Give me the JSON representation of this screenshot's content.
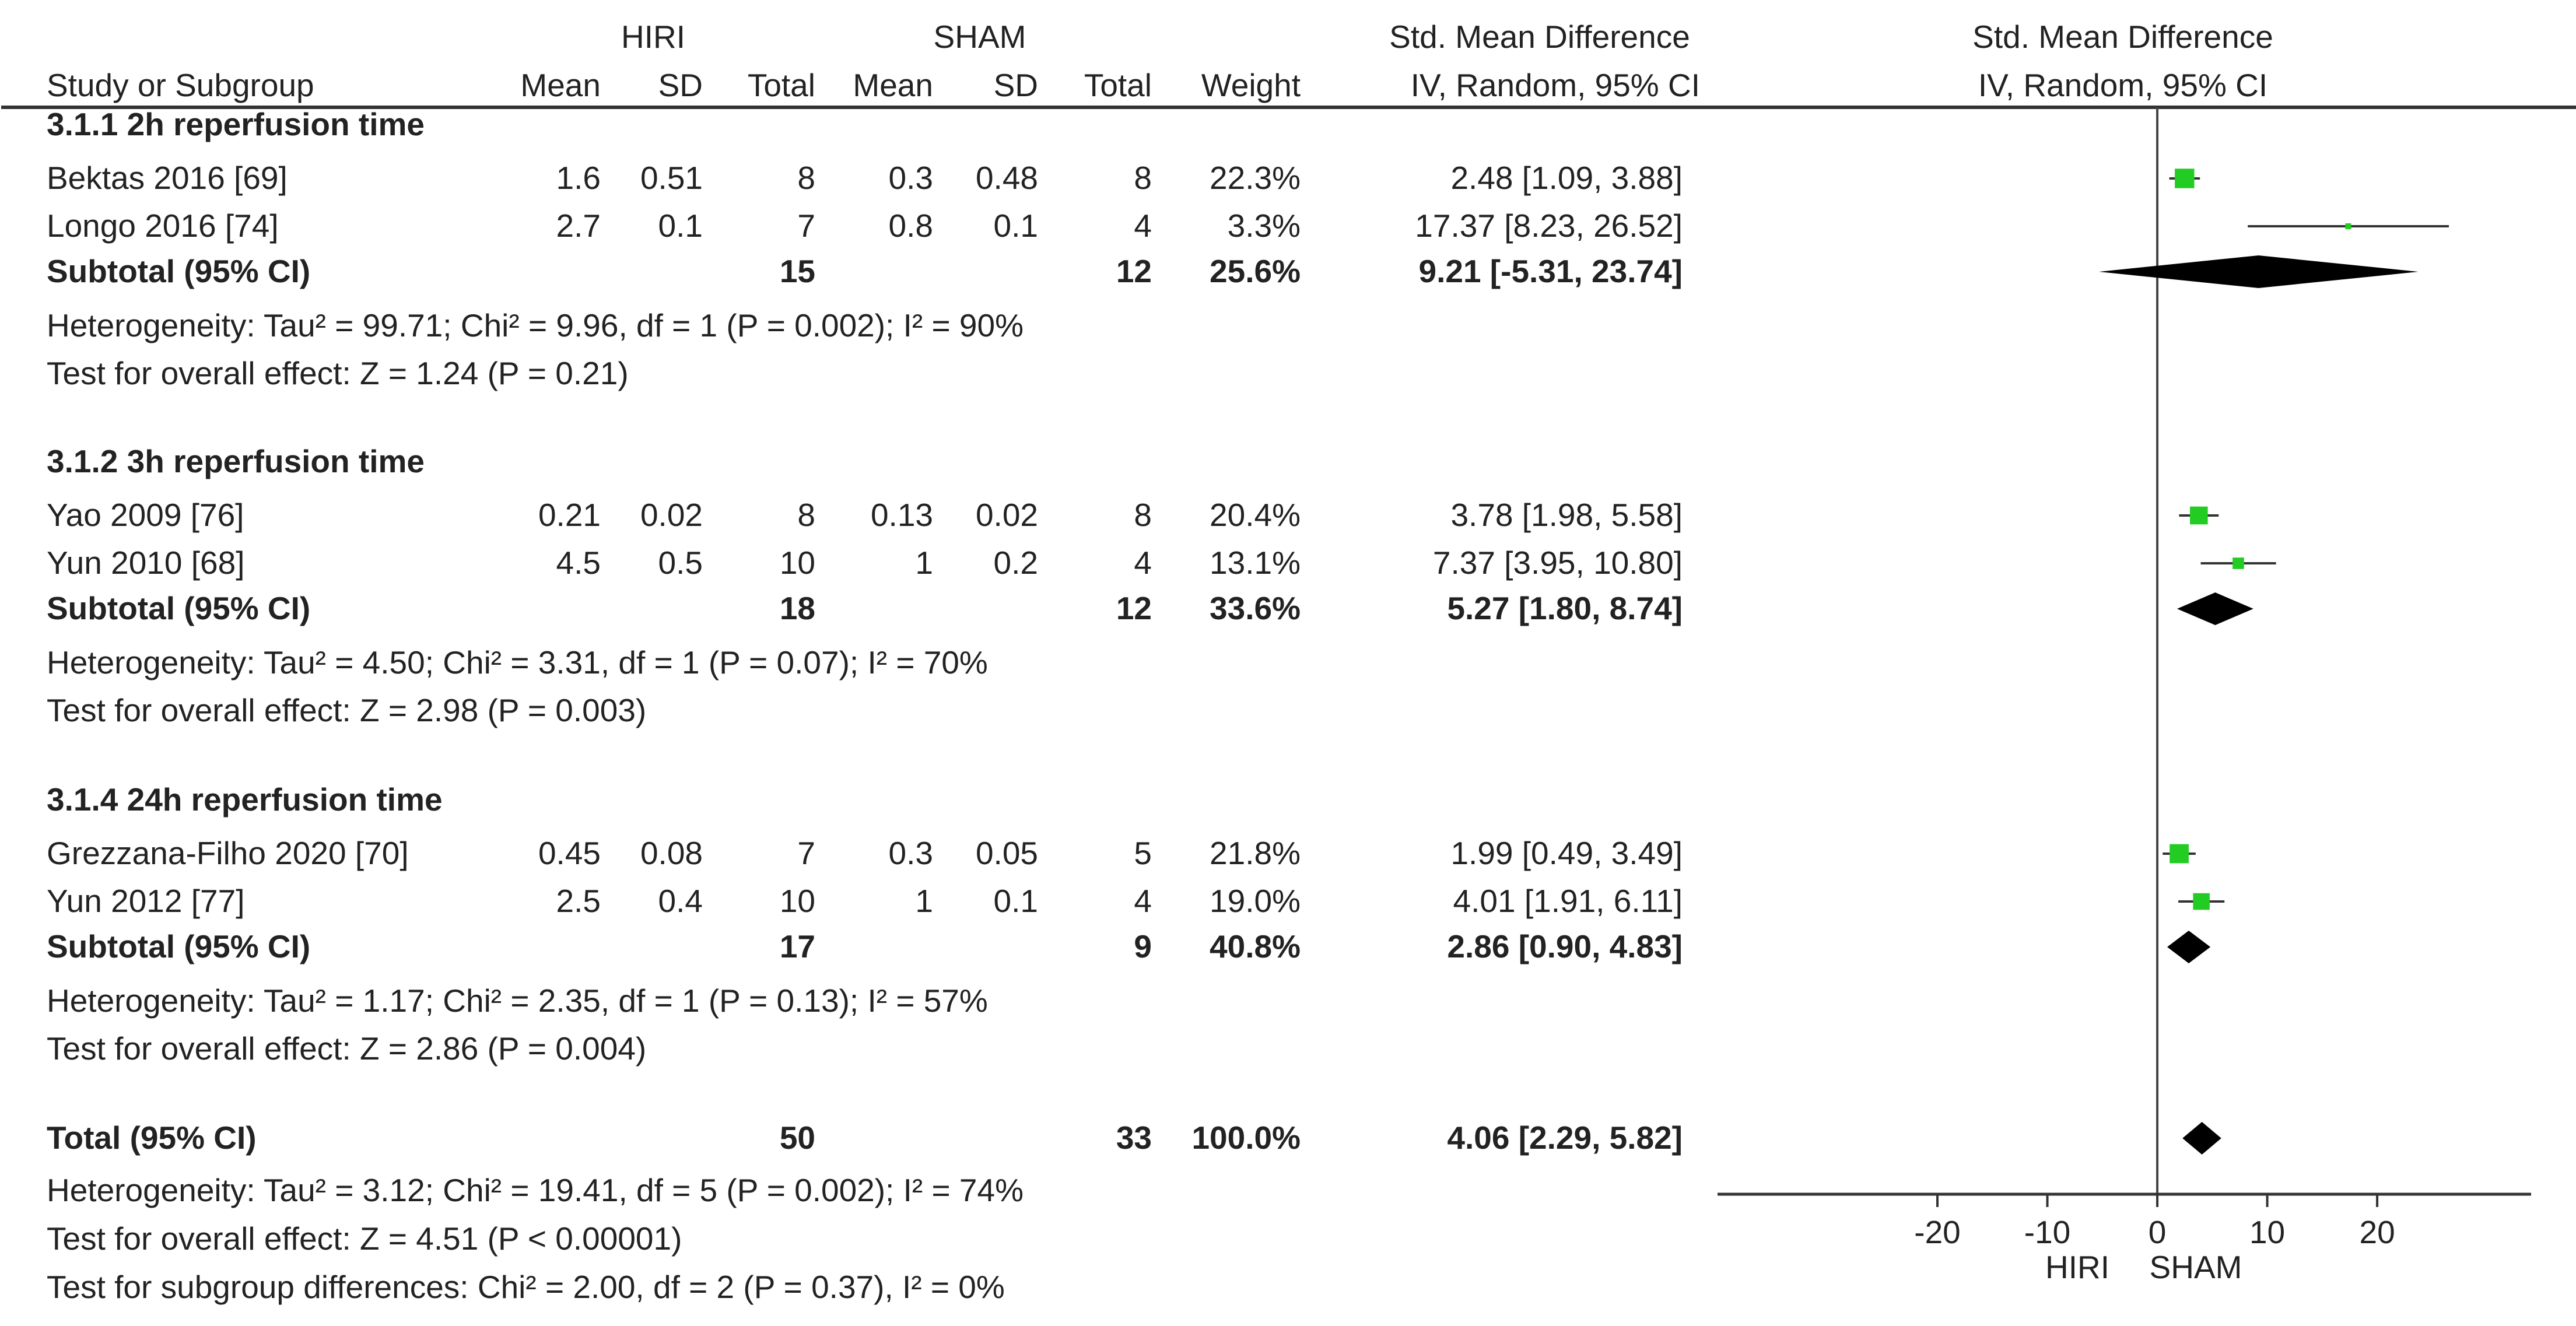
{
  "headers": {
    "group1": "HIRI",
    "group2": "SHAM",
    "effect_title": "Std. Mean Difference",
    "effect_method": "IV, Random, 95% CI",
    "plot_title": "Std. Mean Difference",
    "plot_method": "IV, Random, 95% CI",
    "study": "Study or Subgroup",
    "mean1": "Mean",
    "sd1": "SD",
    "total1": "Total",
    "mean2": "Mean",
    "sd2": "SD",
    "total2": "Total",
    "weight": "Weight"
  },
  "axis": {
    "left_label": "HIRI",
    "right_label": "SHAM"
  },
  "colors": {
    "study_marker": "#22cc22",
    "pooled_marker": "#000000",
    "text": "#222222",
    "lines": "#333333"
  },
  "chart_data": {
    "type": "forest",
    "xlim": [
      -40,
      34
    ],
    "ticks": [
      {
        "value": -20,
        "label": "-20"
      },
      {
        "value": -10,
        "label": "-10"
      },
      {
        "value": 0,
        "label": "0"
      },
      {
        "value": 10,
        "label": "10"
      },
      {
        "value": 20,
        "label": "20"
      }
    ],
    "groups": [
      {
        "heading": "3.1.1 2h reperfusion time",
        "studies": [
          {
            "name": "Bektas 2016 [69]",
            "mean1": "1.6",
            "sd1": "0.51",
            "total1": "8",
            "mean2": "0.3",
            "sd2": "0.48",
            "total2": "8",
            "weight": "22.3%",
            "ci_text": "2.48 [1.09, 3.88]",
            "est": 2.48,
            "lo": 1.09,
            "hi": 3.88
          },
          {
            "name": "Longo 2016 [74]",
            "mean1": "2.7",
            "sd1": "0.1",
            "total1": "7",
            "mean2": "0.8",
            "sd2": "0.1",
            "total2": "4",
            "weight": "3.3%",
            "ci_text": "17.37 [8.23, 26.52]",
            "est": 17.37,
            "lo": 8.23,
            "hi": 26.52
          }
        ],
        "subtotal": {
          "label": "Subtotal (95% CI)",
          "total1": "15",
          "total2": "12",
          "weight": "25.6%",
          "ci_text": "9.21 [-5.31, 23.74]",
          "est": 9.21,
          "lo": -5.31,
          "hi": 23.74
        },
        "heterogeneity": "Heterogeneity: Tau² = 99.71; Chi² = 9.96, df = 1 (P = 0.002); I² = 90%",
        "overall": "Test for overall effect: Z = 1.24 (P = 0.21)"
      },
      {
        "heading": "3.1.2 3h reperfusion time",
        "studies": [
          {
            "name": "Yao 2009 [76]",
            "mean1": "0.21",
            "sd1": "0.02",
            "total1": "8",
            "mean2": "0.13",
            "sd2": "0.02",
            "total2": "8",
            "weight": "20.4%",
            "ci_text": "3.78 [1.98, 5.58]",
            "est": 3.78,
            "lo": 1.98,
            "hi": 5.58
          },
          {
            "name": "Yun 2010 [68]",
            "mean1": "4.5",
            "sd1": "0.5",
            "total1": "10",
            "mean2": "1",
            "sd2": "0.2",
            "total2": "4",
            "weight": "13.1%",
            "ci_text": "7.37 [3.95, 10.80]",
            "est": 7.37,
            "lo": 3.95,
            "hi": 10.8
          }
        ],
        "subtotal": {
          "label": "Subtotal (95% CI)",
          "total1": "18",
          "total2": "12",
          "weight": "33.6%",
          "ci_text": "5.27 [1.80, 8.74]",
          "est": 5.27,
          "lo": 1.8,
          "hi": 8.74
        },
        "heterogeneity": "Heterogeneity: Tau² = 4.50; Chi² = 3.31, df = 1 (P = 0.07); I² = 70%",
        "overall": "Test for overall effect: Z = 2.98 (P = 0.003)"
      },
      {
        "heading": "3.1.4 24h reperfusion time",
        "studies": [
          {
            "name": "Grezzana-Filho 2020 [70]",
            "mean1": "0.45",
            "sd1": "0.08",
            "total1": "7",
            "mean2": "0.3",
            "sd2": "0.05",
            "total2": "5",
            "weight": "21.8%",
            "ci_text": "1.99 [0.49, 3.49]",
            "est": 1.99,
            "lo": 0.49,
            "hi": 3.49
          },
          {
            "name": "Yun 2012 [77]",
            "mean1": "2.5",
            "sd1": "0.4",
            "total1": "10",
            "mean2": "1",
            "sd2": "0.1",
            "total2": "4",
            "weight": "19.0%",
            "ci_text": "4.01 [1.91, 6.11]",
            "est": 4.01,
            "lo": 1.91,
            "hi": 6.11
          }
        ],
        "subtotal": {
          "label": "Subtotal (95% CI)",
          "total1": "17",
          "total2": "9",
          "weight": "40.8%",
          "ci_text": "2.86 [0.90, 4.83]",
          "est": 2.86,
          "lo": 0.9,
          "hi": 4.83
        },
        "heterogeneity": "Heterogeneity: Tau² = 1.17; Chi² = 2.35, df = 1 (P = 0.13); I² = 57%",
        "overall": "Test for overall effect: Z = 2.86 (P = 0.004)"
      }
    ],
    "total": {
      "label": "Total (95% CI)",
      "total1": "50",
      "total2": "33",
      "weight": "100.0%",
      "ci_text": "4.06 [2.29, 5.82]",
      "est": 4.06,
      "lo": 2.29,
      "hi": 5.82,
      "heterogeneity": "Heterogeneity: Tau² = 3.12; Chi² = 19.41, df = 5 (P = 0.002); I² = 74%",
      "overall": "Test for overall effect: Z = 4.51 (P < 0.00001)",
      "subgroup": "Test for subgroup differences: Chi² = 2.00, df = 2 (P = 0.37), I² = 0%"
    }
  }
}
